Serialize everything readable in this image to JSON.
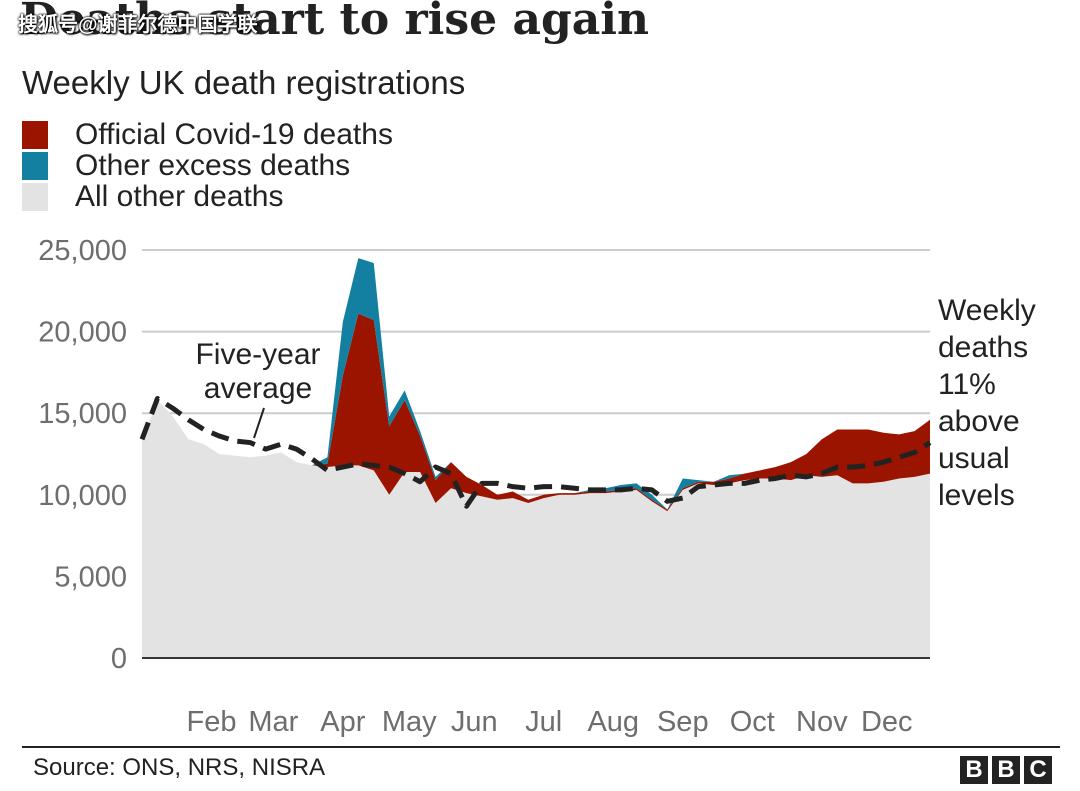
{
  "header": {
    "title": "Deaths start to rise again",
    "watermark": "搜狐号@谢菲尔德中国学联",
    "subtitle": "Weekly UK death registrations"
  },
  "footer": {
    "source": "Source: ONS, NRS, NISRA",
    "logo": [
      "B",
      "B",
      "C"
    ]
  },
  "colors": {
    "covid": "#9a1400",
    "excess": "#1380a1",
    "other": "#e3e3e3",
    "average": "#222222",
    "grid": "#cccccc"
  },
  "chart_data": {
    "type": "area",
    "title": "Deaths start to rise again",
    "subtitle": "Weekly UK death registrations",
    "ylim": [
      0,
      25000
    ],
    "yticks": [
      0,
      5000,
      10000,
      15000,
      20000,
      25000
    ],
    "ytick_labels": [
      "0",
      "5,000",
      "10,000",
      "15,000",
      "20,000",
      "25,000"
    ],
    "xlim": [
      1,
      52
    ],
    "month_labels": [
      "Feb",
      "Mar",
      "Apr",
      "May",
      "Jun",
      "Jul",
      "Aug",
      "Sep",
      "Oct",
      "Nov",
      "Dec"
    ],
    "month_positions": [
      5.5,
      9.5,
      14,
      18.3,
      22.5,
      27,
      31.5,
      36,
      40.5,
      45,
      49.2
    ],
    "legend": [
      {
        "key": "covid",
        "label": "Official Covid-19 deaths"
      },
      {
        "key": "excess",
        "label": "Other excess deaths"
      },
      {
        "key": "other",
        "label": "All other deaths"
      }
    ],
    "weeks": [
      1,
      2,
      3,
      4,
      5,
      6,
      7,
      8,
      9,
      10,
      11,
      12,
      13,
      14,
      15,
      16,
      17,
      18,
      19,
      20,
      21,
      22,
      23,
      24,
      25,
      26,
      27,
      28,
      29,
      30,
      31,
      32,
      33,
      34,
      35,
      36,
      37,
      38,
      39,
      40,
      41,
      42,
      43,
      44,
      45,
      46,
      47,
      48,
      49,
      50,
      51,
      52
    ],
    "series": [
      {
        "name": "All other deaths",
        "values": [
          13300,
          15800,
          14800,
          13400,
          13100,
          12500,
          12400,
          12300,
          12400,
          12600,
          12000,
          11800,
          11700,
          11800,
          11800,
          11500,
          10000,
          11400,
          11400,
          9500,
          10400,
          10100,
          9900,
          9700,
          9800,
          9500,
          9800,
          10000,
          10000,
          10100,
          10100,
          10200,
          10300,
          9600,
          9000,
          10300,
          10700,
          10600,
          10700,
          10900,
          11000,
          11000,
          10900,
          11200,
          11100,
          11200,
          10700,
          10700,
          10800,
          11000,
          11100,
          11300
        ]
      },
      {
        "name": "Official Covid-19 deaths",
        "values": [
          0,
          0,
          0,
          0,
          0,
          0,
          0,
          0,
          0,
          0,
          0,
          0,
          200,
          5500,
          9300,
          9200,
          4200,
          4400,
          2200,
          1400,
          1600,
          1000,
          700,
          300,
          400,
          200,
          200,
          100,
          100,
          100,
          100,
          100,
          100,
          100,
          100,
          100,
          100,
          200,
          300,
          400,
          500,
          700,
          1100,
          1300,
          2300,
          2800,
          3300,
          3300,
          3000,
          2700,
          2800,
          3300
        ]
      },
      {
        "name": "Other excess deaths",
        "values": [
          0,
          0,
          0,
          0,
          0,
          0,
          0,
          0,
          0,
          0,
          0,
          0,
          400,
          3300,
          3400,
          3500,
          600,
          600,
          300,
          200,
          0,
          0,
          0,
          0,
          0,
          0,
          0,
          0,
          0,
          100,
          200,
          300,
          300,
          300,
          0,
          600,
          100,
          0,
          200,
          0,
          0,
          0,
          0,
          0,
          0,
          0,
          0,
          0,
          0,
          0,
          0,
          0
        ]
      },
      {
        "name": "Five-year average",
        "values": [
          13400,
          15900,
          15300,
          14600,
          14000,
          13600,
          13300,
          13200,
          12800,
          13100,
          12800,
          12200,
          11500,
          11700,
          11900,
          11800,
          11700,
          11300,
          10800,
          11700,
          11300,
          9300,
          10700,
          10700,
          10500,
          10400,
          10500,
          10500,
          10400,
          10300,
          10300,
          10300,
          10400,
          10300,
          9600,
          9800,
          10500,
          10600,
          10700,
          10700,
          10900,
          11000,
          11200,
          11100,
          11300,
          11700,
          11700,
          11800,
          12000,
          12300,
          12600,
          13200
        ]
      }
    ],
    "annotations": [
      {
        "name": "five-year-average-annotation",
        "lines": [
          "Five-year",
          "average"
        ]
      },
      {
        "name": "weekly-deaths-annotation",
        "lines": [
          "Weekly",
          "deaths",
          "11%",
          "above",
          "usual",
          "levels"
        ]
      }
    ]
  }
}
